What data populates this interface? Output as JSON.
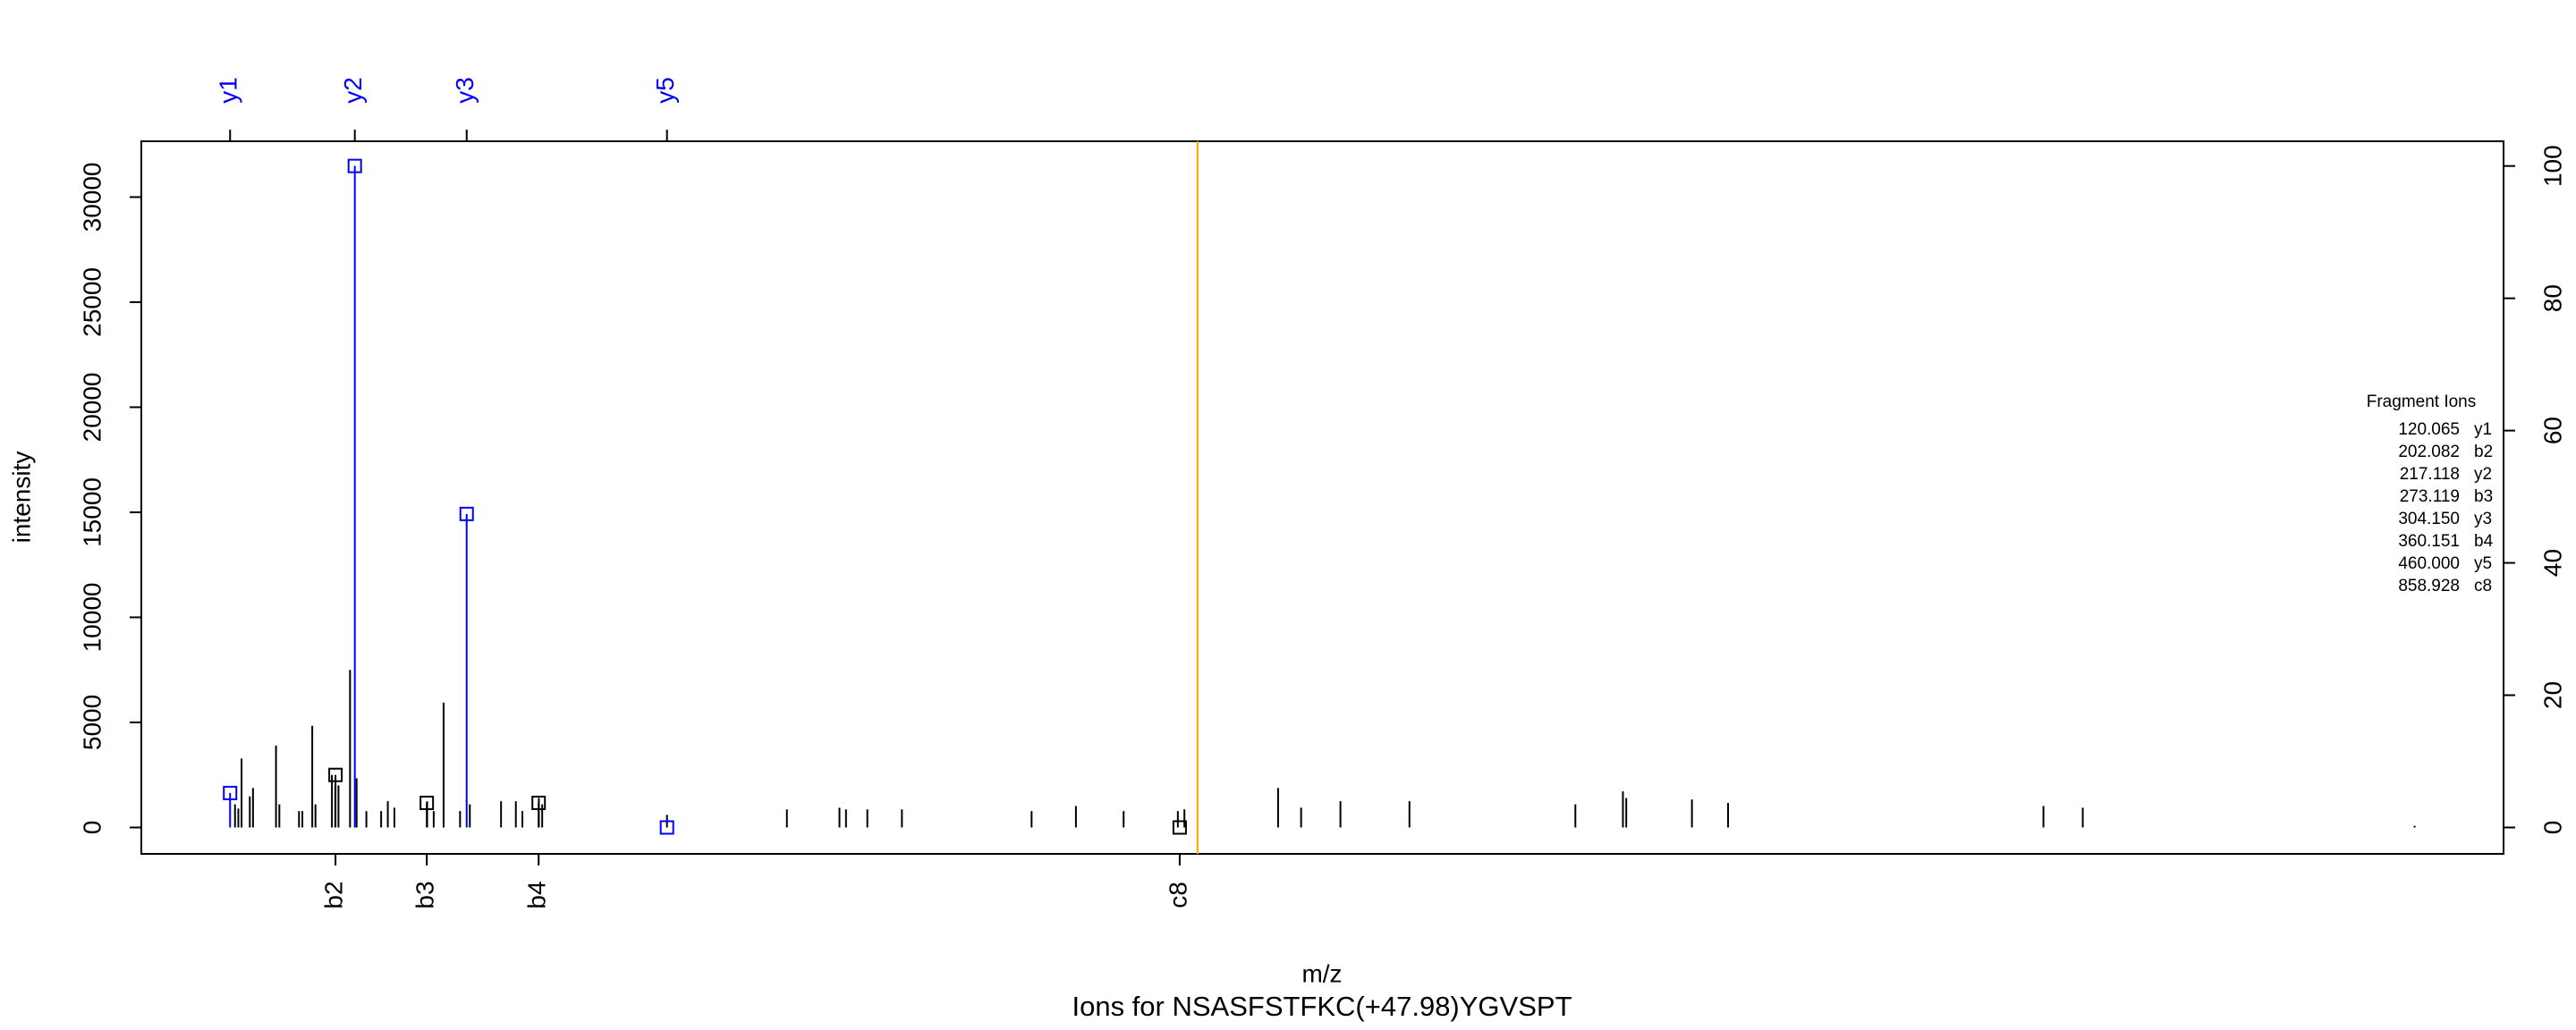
{
  "chart_data": {
    "type": "spectrum",
    "title": "Ions for NSASFSTFKC(+47.98)YGVSPT",
    "x_label": "m/z",
    "y_label": "intensity",
    "xlim": [
      51,
      1889
    ],
    "ylim": [
      -1256,
      32656
    ],
    "yticks": [
      0,
      5000,
      10000,
      15000,
      20000,
      25000,
      30000
    ],
    "y2lim": [
      -3.99,
      103.74
    ],
    "y2ticks": [
      0,
      20,
      40,
      60,
      80,
      100
    ],
    "peaks": {
      "color": "#000000",
      "mz": [
        123.9,
        126.5,
        129.0,
        135.4,
        137.9,
        155.8,
        158.4,
        173.7,
        176.3,
        184.0,
        186.5,
        199.3,
        201.9,
        204.4,
        213.4,
        218.5,
        226.1,
        237.6,
        242.8,
        247.9,
        273.4,
        278.5,
        286.2,
        299.0,
        306.6,
        330.9,
        342.4,
        347.5,
        360.3,
        362.9,
        460.0,
        553.3,
        594.2,
        599.3,
        615.9,
        642.8,
        743.7,
        778.2,
        815.3,
        857.5,
        862.6,
        935.5,
        953.4,
        984.0,
        1037.7,
        1166.8,
        1203.8,
        1206.4,
        1257.5,
        1285.6,
        1531.0,
        1561.6,
        1819.8
      ],
      "intensity": [
        1100,
        900,
        3280,
        1480,
        1880,
        3900,
        1100,
        780,
        780,
        4840,
        1100,
        2500,
        2000,
        2000,
        7500,
        2340,
        780,
        780,
        1250,
        940,
        1250,
        780,
        5940,
        780,
        1100,
        1250,
        1250,
        780,
        1400,
        1100,
        600,
        860,
        940,
        860,
        860,
        860,
        780,
        1020,
        780,
        780,
        860,
        1880,
        940,
        1250,
        1250,
        1100,
        1720,
        1400,
        1330,
        1170,
        1020,
        940,
        80
      ]
    },
    "fragments": {
      "title": "Fragment Ions",
      "ions": [
        "y1",
        "b2",
        "y2",
        "b3",
        "y3",
        "b4",
        "y5",
        "c8"
      ],
      "mz": [
        120.065,
        202.082,
        217.118,
        273.119,
        304.15,
        360.151,
        460.0,
        858.928
      ],
      "mz_labels": [
        "120.065",
        "202.082",
        "217.118",
        "273.119",
        "304.150",
        "360.151",
        "460.000",
        "858.928"
      ],
      "intensity": [
        1640,
        2500,
        31480,
        1170,
        14920,
        1170,
        0,
        0
      ],
      "axis": [
        "top",
        "bottom",
        "top",
        "bottom",
        "top",
        "bottom",
        "top",
        "bottom"
      ],
      "colors": [
        "#0000ff",
        "#000000",
        "#0000ff",
        "#000000",
        "#0000ff",
        "#000000",
        "#0000ff",
        "#000000"
      ]
    },
    "precursor_mz": 872.8,
    "precursor_color": "#ffa500"
  }
}
